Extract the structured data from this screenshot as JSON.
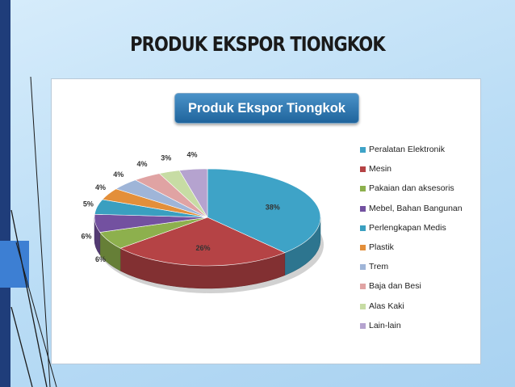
{
  "slide": {
    "title": "PRODUK EKSPOR TIONGKOK"
  },
  "chart_data": {
    "type": "pie",
    "title": "Produk Ekspor Tiongkok",
    "legend_position": "right",
    "style": "3d",
    "categories": [
      "Peralatan Elektronik",
      "Mesin",
      "Pakaian dan aksesoris",
      "Mebel, Bahan Bangunan",
      "Perlengkapan Medis",
      "Plastik",
      "Trem",
      "Baja dan Besi",
      "Alas Kaki",
      "Lain-lain"
    ],
    "values": [
      38,
      26,
      6,
      6,
      5,
      4,
      4,
      4,
      3,
      4
    ],
    "labels": [
      "38%",
      "26%",
      "6%",
      "6%",
      "5%",
      "4%",
      "4%",
      "4%",
      "3%",
      "4%"
    ],
    "colors": [
      "#3ea3c7",
      "#b54345",
      "#8db04d",
      "#7351a0",
      "#3a9fc0",
      "#e38f3a",
      "#9fb5d8",
      "#e0a3a3",
      "#c7dca4",
      "#b5a3cf"
    ]
  }
}
